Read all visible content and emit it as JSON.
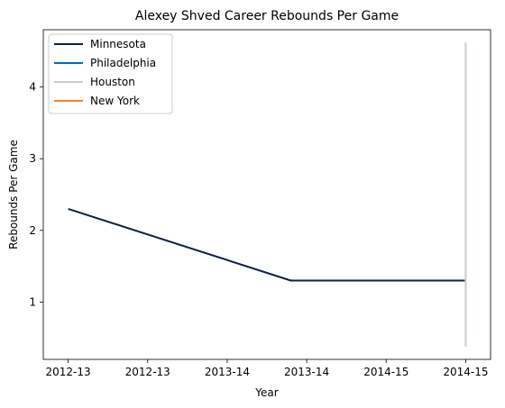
{
  "chart_data": {
    "type": "line",
    "title": "Alexey Shved Career Rebounds Per Game",
    "xlabel": "Year",
    "ylabel": "Rebounds Per Game",
    "x_ticks": [
      "2012-13",
      "2012-13",
      "2013-14",
      "2013-14",
      "2014-15",
      "2014-15"
    ],
    "xlim": [
      -0.125,
      2.125
    ],
    "ylim": [
      0.2,
      4.8
    ],
    "y_ticks": [
      1,
      2,
      3,
      4
    ],
    "grid": false,
    "legend": "top-left",
    "series": [
      {
        "name": "Minnesota",
        "color": "#0C2340",
        "points": [
          [
            0,
            2.3
          ],
          [
            1.12,
            1.3
          ],
          [
            2.0,
            1.3
          ]
        ]
      },
      {
        "name": "Philadelphia",
        "color": "#006BB6",
        "points": []
      },
      {
        "name": "Houston",
        "color": "#C4CED4",
        "points": [
          [
            2.0,
            0.38
          ],
          [
            2.0,
            4.62
          ]
        ]
      },
      {
        "name": "New York",
        "color": "#F58426",
        "points": []
      }
    ]
  }
}
